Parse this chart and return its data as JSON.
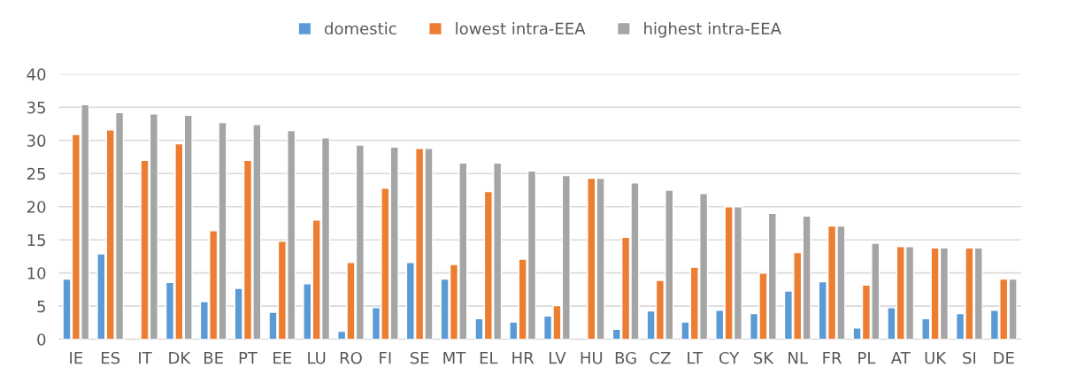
{
  "chart_data": {
    "type": "bar",
    "categories": [
      "IE",
      "ES",
      "IT",
      "DK",
      "BE",
      "PT",
      "EE",
      "LU",
      "RO",
      "FI",
      "SE",
      "MT",
      "EL",
      "HR",
      "LV",
      "HU",
      "BG",
      "CZ",
      "LT",
      "CY",
      "SK",
      "NL",
      "FR",
      "PL",
      "AT",
      "UK",
      "SI",
      "DE"
    ],
    "series": [
      {
        "name": "domestic",
        "color": "#5b9bd5",
        "values": [
          9.1,
          12.9,
          null,
          8.6,
          5.7,
          7.7,
          4.1,
          8.4,
          1.2,
          4.8,
          11.6,
          9.1,
          3.1,
          2.6,
          3.5,
          null,
          1.5,
          4.3,
          2.6,
          4.4,
          3.9,
          7.3,
          8.7,
          1.7,
          4.8,
          3.1,
          3.9,
          4.4
        ]
      },
      {
        "name": "lowest intra-EEA",
        "color": "#ed7d31",
        "values": [
          30.9,
          31.6,
          27.0,
          29.5,
          16.4,
          27.0,
          14.8,
          18.0,
          11.6,
          22.8,
          28.8,
          11.3,
          22.3,
          12.1,
          5.1,
          24.3,
          15.4,
          8.9,
          10.9,
          20.0,
          10.0,
          13.1,
          17.1,
          8.2,
          14.0,
          13.8,
          13.8,
          9.1
        ]
      },
      {
        "name": "highest intra-EEA",
        "color": "#a5a5a5",
        "values": [
          35.4,
          34.2,
          34.0,
          33.8,
          32.7,
          32.4,
          31.5,
          30.4,
          29.3,
          29.0,
          28.8,
          26.6,
          26.6,
          25.4,
          24.7,
          24.3,
          23.6,
          22.5,
          22.0,
          20.0,
          19.0,
          18.6,
          17.1,
          14.5,
          14.0,
          13.8,
          13.8,
          9.1
        ]
      }
    ],
    "ylim": [
      0,
      40
    ],
    "yticks": [
      0,
      5,
      10,
      15,
      20,
      25,
      30,
      35,
      40
    ],
    "grid": "y",
    "legend": "top"
  }
}
